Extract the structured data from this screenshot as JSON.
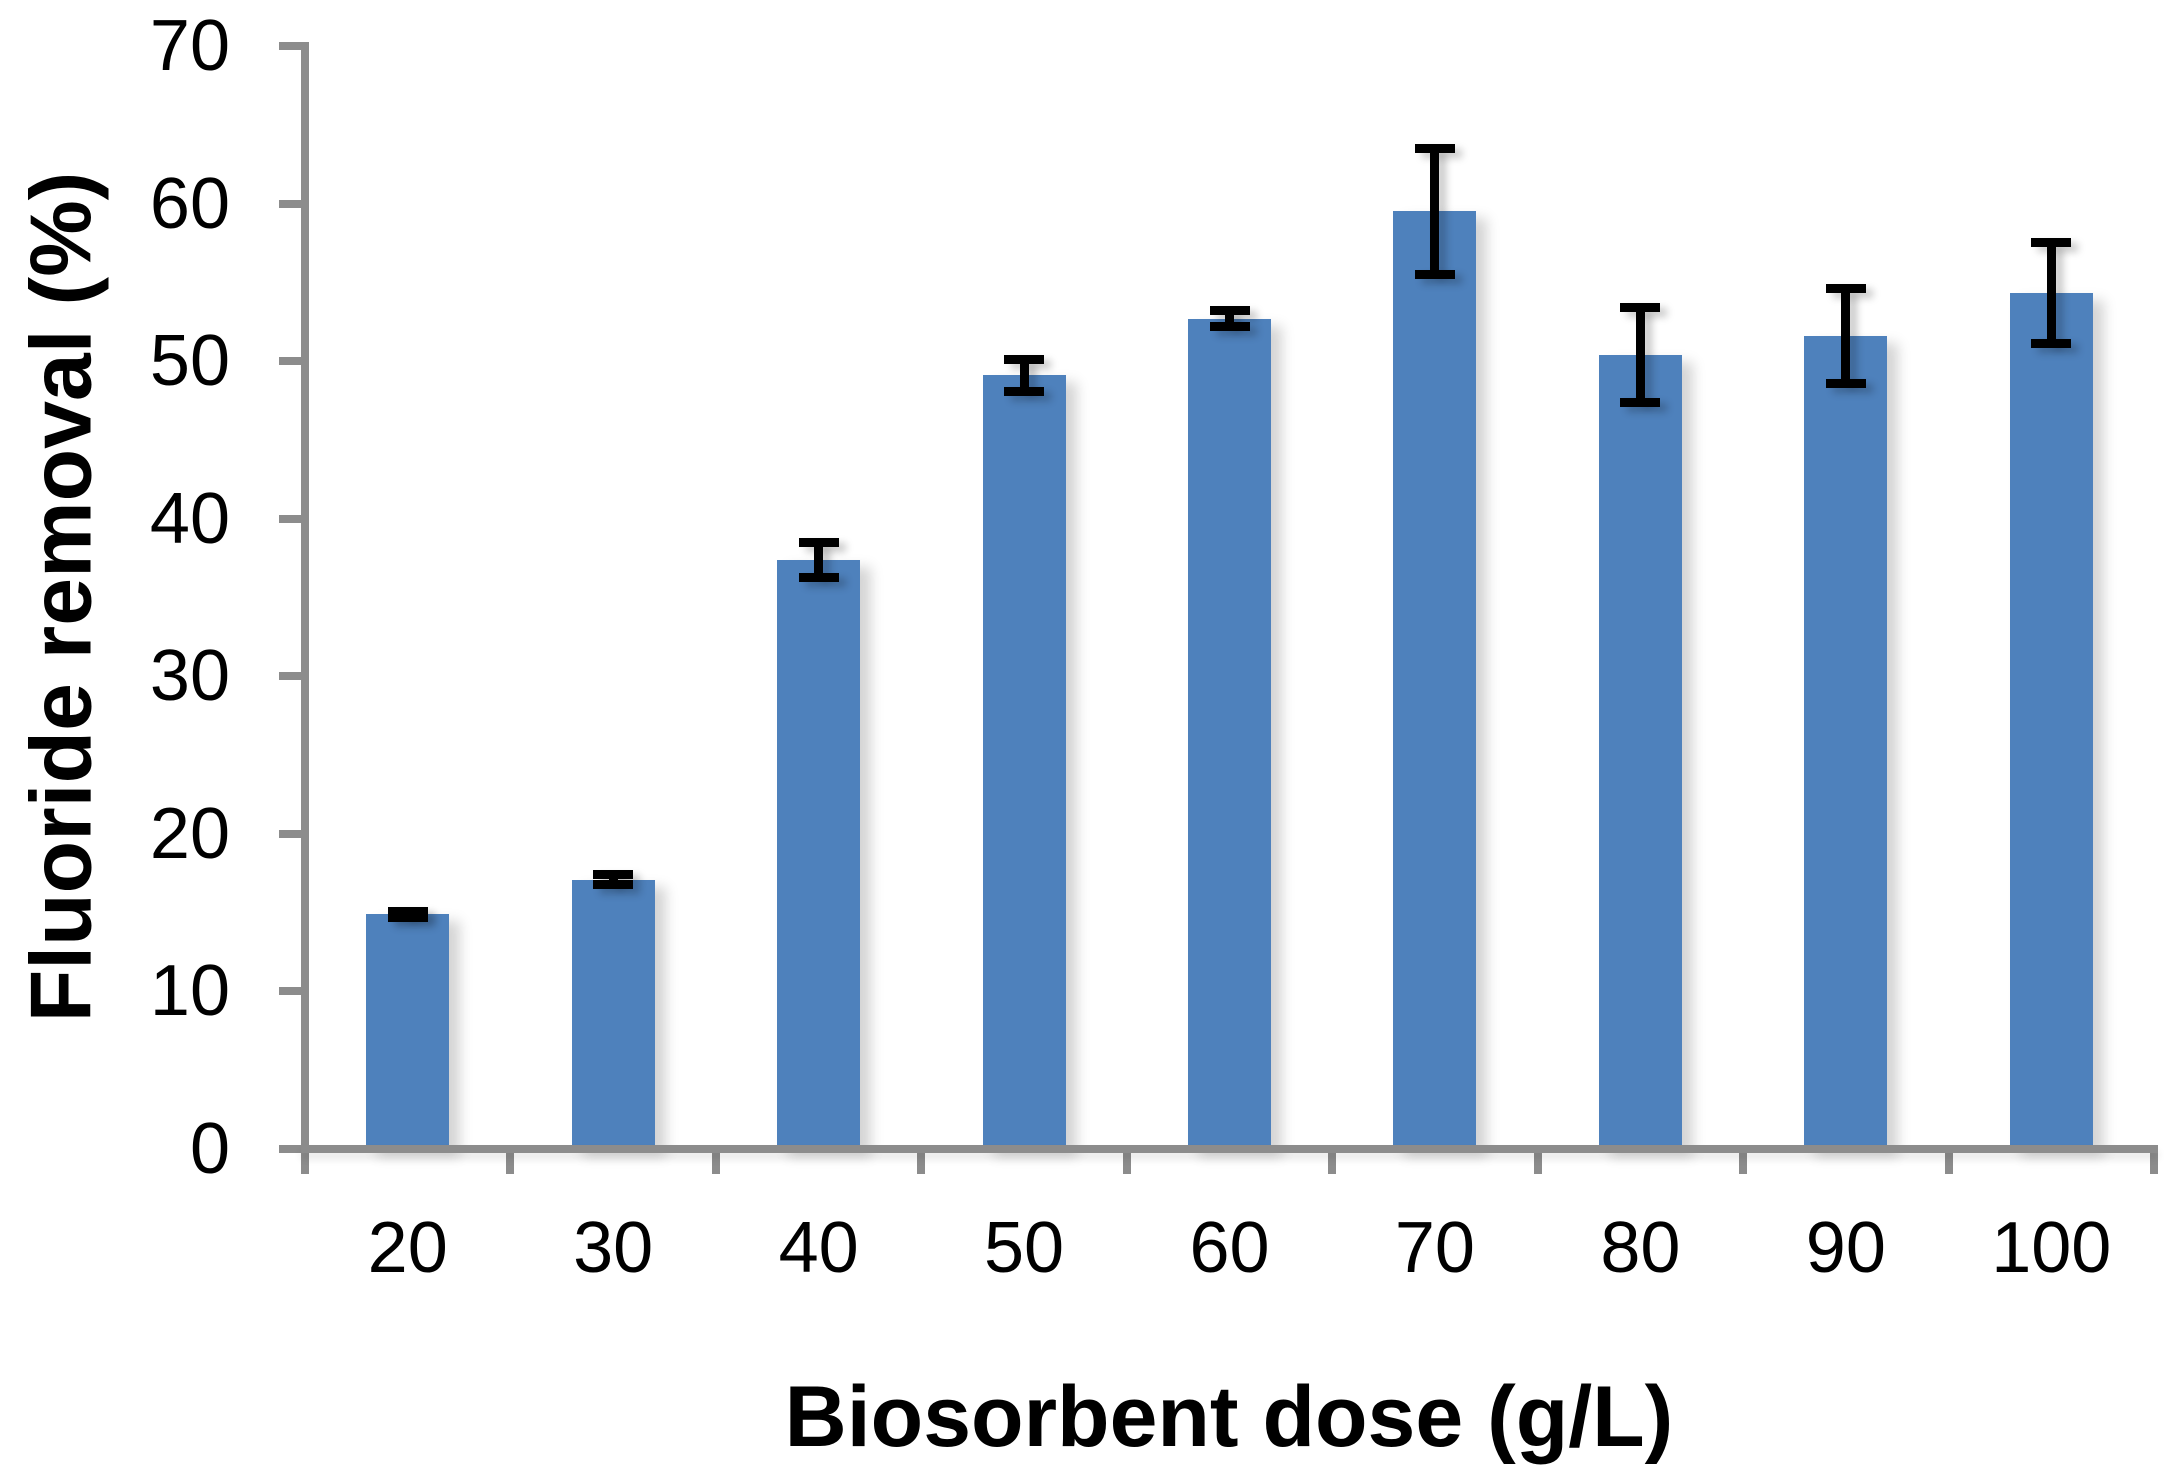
{
  "figure": {
    "background": "#FFFFFF"
  },
  "chart_data": {
    "type": "bar",
    "title": "",
    "xlabel": "Biosorbent dose (g/L)",
    "ylabel": "Fluoride removal (%)",
    "categories": [
      "20",
      "30",
      "40",
      "50",
      "60",
      "70",
      "80",
      "90",
      "100"
    ],
    "values": [
      14.9,
      17.1,
      37.4,
      49.1,
      52.7,
      59.5,
      50.4,
      51.6,
      54.3
    ],
    "errors": [
      0.2,
      0.3,
      1.1,
      1.0,
      0.5,
      4.0,
      3.0,
      3.0,
      3.2
    ],
    "ylim": [
      0,
      70
    ],
    "yticks": [
      0,
      10,
      20,
      30,
      40,
      50,
      60,
      70
    ],
    "grid": false,
    "legend": "none",
    "bar_color": "#4E81BC",
    "axis_color": "#8C8C8C",
    "error_bar_color": "#000000",
    "label_color": "#000000"
  }
}
